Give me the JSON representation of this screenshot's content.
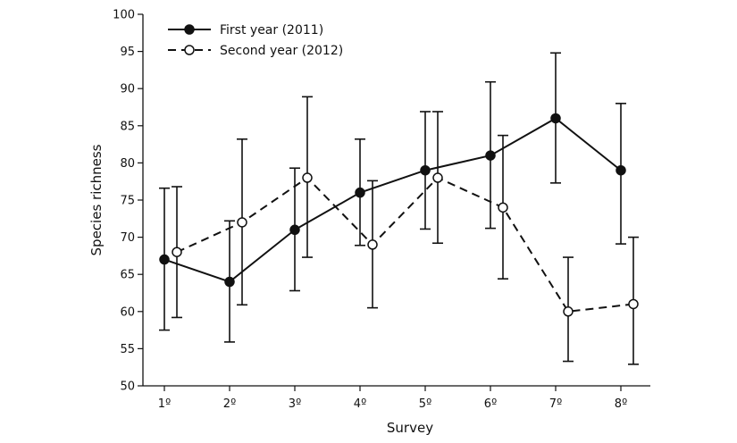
{
  "chart_data": {
    "type": "line",
    "title": "",
    "xlabel": "Survey",
    "ylabel": "Species richness",
    "categories": [
      "1º",
      "2º",
      "3º",
      "4º",
      "5º",
      "6º",
      "7º",
      "8º"
    ],
    "ylim": [
      50,
      100
    ],
    "yticks": [
      50,
      55,
      60,
      65,
      70,
      75,
      80,
      85,
      90,
      95,
      100
    ],
    "grid": false,
    "legend_position": "top-left",
    "series": [
      {
        "name": "First year (2011)",
        "marker": "filled-circle",
        "line_style": "solid",
        "values": [
          67,
          64,
          71,
          76,
          79,
          81,
          86,
          79
        ],
        "err_low": [
          57.5,
          55.9,
          62.8,
          68.9,
          71.1,
          71.2,
          77.3,
          69.1
        ],
        "err_high": [
          76.6,
          72.2,
          79.3,
          83.2,
          86.9,
          90.9,
          94.8,
          88.0
        ]
      },
      {
        "name": "Second year (2012)",
        "marker": "open-circle",
        "line_style": "dashed",
        "values": [
          68,
          72,
          78,
          69,
          78,
          74,
          60,
          61
        ],
        "err_low": [
          59.2,
          60.9,
          67.3,
          60.5,
          69.2,
          64.4,
          53.3,
          52.9
        ],
        "err_high": [
          76.8,
          83.2,
          88.9,
          77.6,
          86.9,
          83.7,
          67.3,
          70.0
        ]
      }
    ]
  }
}
